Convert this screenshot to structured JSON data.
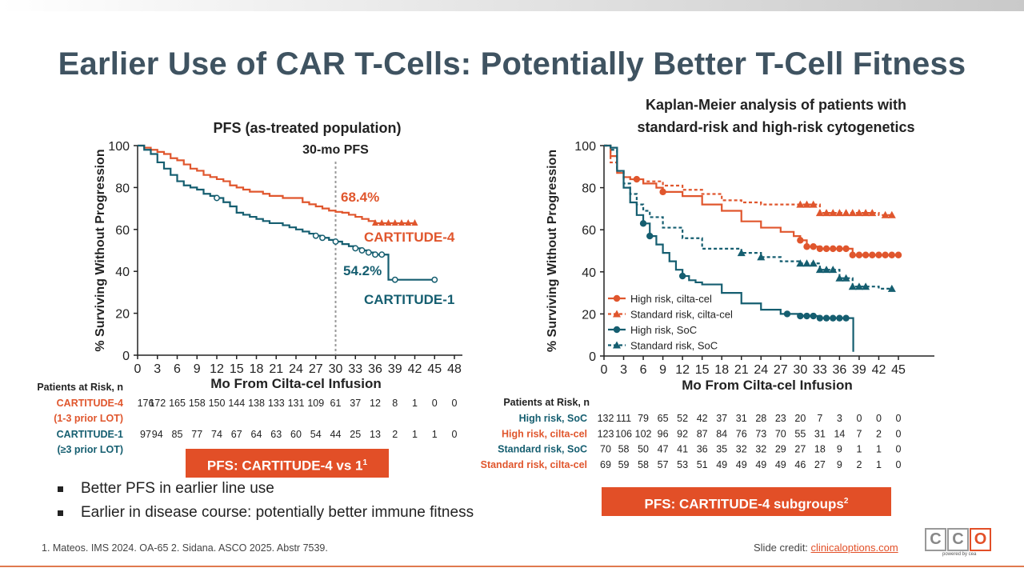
{
  "slide": {
    "title": "Earlier Use of CAR T-Cells: Potentially Better T-Cell Fitness",
    "bullets": [
      "Better PFS in earlier line use",
      "Earlier in disease course: potentially better immune fitness"
    ],
    "footnote": "1. Mateos. IMS 2024. OA-65 2. Sidana. ASCO 2025. Abstr 7539.",
    "credit_label": "Slide credit: ",
    "credit_link": "clinicaloptions.com",
    "logo_letters": [
      "C",
      "C",
      "O"
    ],
    "logo_tagline": "powered by cea",
    "callout_left": "PFS: CARTITUDE-4 vs 1",
    "callout_left_sup": "1",
    "callout_right": "PFS: CARTITUDE-4 subgroups",
    "callout_right_sup": "2"
  },
  "colors": {
    "orange": "#e0562d",
    "teal": "#155e70",
    "title": "#3f5361",
    "callout": "#e24f27"
  },
  "chart_data": [
    {
      "type": "line",
      "title": "PFS (as-treated population)",
      "xlabel": "Mo From Cilta-cel Infusion",
      "ylabel": "% Surviving Without Progression",
      "xlim": [
        0,
        48
      ],
      "ylim": [
        0,
        100
      ],
      "xticks": [
        0,
        3,
        6,
        9,
        12,
        15,
        18,
        21,
        24,
        27,
        30,
        33,
        36,
        39,
        42,
        45,
        48
      ],
      "yticks": [
        0,
        20,
        40,
        60,
        80,
        100
      ],
      "reference_line": {
        "x": 30,
        "label": "30-mo PFS"
      },
      "series": [
        {
          "name": "CARTITUDE-4",
          "color": "orange",
          "label": "CARTITUDE-4",
          "annotation": "68.4%",
          "x": [
            0,
            1,
            2,
            3,
            4,
            5,
            6,
            7,
            8,
            9,
            10,
            11,
            12,
            13,
            14,
            15,
            16,
            17,
            18,
            19,
            20,
            21,
            22,
            23,
            24,
            25,
            26,
            27,
            28,
            29,
            30,
            31,
            32,
            33,
            34,
            35,
            36,
            37,
            38,
            39,
            40,
            41,
            42
          ],
          "y": [
            100,
            99,
            98,
            97,
            96,
            94,
            93,
            91,
            89,
            88,
            86,
            85,
            84,
            83,
            81,
            80,
            79,
            78,
            78,
            77,
            76,
            76,
            75,
            75,
            75,
            73,
            72,
            71,
            70,
            69,
            68.4,
            68,
            67,
            66,
            65,
            64,
            63,
            63,
            63,
            63,
            63,
            63,
            63
          ]
        },
        {
          "name": "CARTITUDE-1",
          "color": "teal",
          "label": "CARTITUDE-1",
          "annotation": "54.2%",
          "x": [
            0,
            1,
            2,
            3,
            4,
            5,
            6,
            7,
            8,
            9,
            10,
            11,
            12,
            13,
            14,
            15,
            16,
            17,
            18,
            19,
            20,
            21,
            22,
            23,
            24,
            25,
            26,
            27,
            28,
            29,
            30,
            31,
            32,
            33,
            34,
            35,
            36,
            37,
            38,
            39,
            40,
            41,
            42,
            43,
            44,
            45
          ],
          "y": [
            100,
            98,
            96,
            92,
            89,
            86,
            83,
            81,
            80,
            79,
            77,
            76,
            75,
            73,
            71,
            68,
            67,
            66,
            65,
            64,
            63,
            63,
            62,
            61,
            60,
            59,
            58,
            57,
            56,
            55,
            54.2,
            53,
            52,
            51,
            50,
            49,
            48,
            48,
            36,
            36,
            36,
            36,
            36,
            36,
            36,
            36
          ]
        }
      ],
      "risk_table": {
        "header": "Patients at Risk, n",
        "rows": [
          {
            "label": "CARTITUDE-4",
            "sublabel": "(1-3 prior LOT)",
            "color": "orange",
            "values": [
              176,
              172,
              165,
              158,
              150,
              144,
              138,
              133,
              131,
              109,
              61,
              37,
              12,
              8,
              1,
              0,
              0
            ]
          },
          {
            "label": "CARTITUDE-1",
            "sublabel": "(≥3 prior LOT)",
            "color": "teal",
            "values": [
              97,
              94,
              85,
              77,
              74,
              67,
              64,
              63,
              60,
              54,
              44,
              25,
              13,
              2,
              1,
              1,
              0
            ]
          }
        ]
      }
    },
    {
      "type": "line",
      "title": "Kaplan-Meier analysis of patients with standard-risk and high-risk cytogenetics",
      "title_lines": [
        "Kaplan-Meier analysis of patients with",
        "standard-risk and high-risk cytogenetics"
      ],
      "xlabel": "Mo From Cilta-cel Infusion",
      "ylabel": "% Surviving Without Progression",
      "xlim": [
        0,
        45
      ],
      "ylim": [
        0,
        100
      ],
      "xticks": [
        0,
        3,
        6,
        9,
        12,
        15,
        18,
        21,
        24,
        27,
        30,
        33,
        36,
        39,
        42,
        45
      ],
      "yticks": [
        0,
        20,
        40,
        60,
        80,
        100
      ],
      "legend_position": "bottom-left",
      "series": [
        {
          "name": "High risk, cilta-cel",
          "color": "orange",
          "dash": false,
          "marker": "circle",
          "x": [
            0,
            1,
            2,
            3,
            4,
            6,
            8,
            9,
            12,
            15,
            18,
            21,
            24,
            27,
            29,
            30,
            31,
            33,
            36,
            38,
            40,
            42,
            45
          ],
          "y": [
            100,
            95,
            87,
            85,
            84,
            82,
            80,
            78,
            76,
            72,
            69,
            64,
            61,
            59,
            57,
            55,
            52,
            51,
            51,
            48,
            48,
            48,
            48
          ]
        },
        {
          "name": "Standard risk, cilta-cel",
          "color": "orange",
          "dash": true,
          "marker": "triangle",
          "x": [
            0,
            1,
            2,
            3,
            4,
            6,
            9,
            12,
            15,
            18,
            21,
            24,
            27,
            29,
            30,
            32,
            33,
            36,
            39,
            42,
            44
          ],
          "y": [
            100,
            92,
            88,
            85,
            84,
            83,
            81,
            79,
            77,
            74,
            73,
            72,
            72,
            72,
            72,
            72,
            68,
            68,
            68,
            67,
            67
          ]
        },
        {
          "name": "High risk, SoC",
          "color": "teal",
          "dash": false,
          "marker": "circle",
          "x": [
            0,
            1,
            2,
            3,
            4,
            5,
            6,
            7,
            8,
            9,
            10,
            11,
            12,
            13,
            14,
            15,
            18,
            21,
            24,
            27,
            30,
            33,
            36,
            37,
            38,
            38.1
          ],
          "y": [
            100,
            99,
            88,
            80,
            73,
            67,
            63,
            57,
            53,
            49,
            45,
            41,
            38,
            36,
            35,
            34,
            30,
            25,
            22,
            20,
            19,
            18,
            18,
            18,
            18,
            2
          ]
        },
        {
          "name": "Standard risk, SoC",
          "color": "teal",
          "dash": true,
          "marker": "triangle",
          "x": [
            0,
            1,
            2,
            3,
            4,
            5,
            6,
            7,
            9,
            12,
            15,
            18,
            21,
            24,
            27,
            30,
            33,
            36,
            38,
            40,
            42,
            44
          ],
          "y": [
            100,
            98,
            88,
            82,
            77,
            72,
            69,
            66,
            61,
            56,
            51,
            51,
            49,
            47,
            45,
            44,
            41,
            37,
            33,
            33,
            32,
            32
          ]
        }
      ],
      "risk_table": {
        "header": "Patients at Risk, n",
        "rows": [
          {
            "label": "High risk, SoC",
            "color": "teal",
            "values": [
              132,
              111,
              79,
              65,
              52,
              42,
              37,
              31,
              28,
              23,
              20,
              7,
              3,
              0,
              0,
              0
            ]
          },
          {
            "label": "High risk, cilta-cel",
            "color": "orange",
            "values": [
              123,
              106,
              102,
              96,
              92,
              87,
              84,
              76,
              73,
              70,
              55,
              31,
              14,
              7,
              2,
              0
            ]
          },
          {
            "label": "Standard risk, SoC",
            "color": "teal",
            "values": [
              70,
              58,
              50,
              47,
              41,
              36,
              35,
              32,
              32,
              29,
              27,
              18,
              9,
              1,
              1,
              0
            ]
          },
          {
            "label": "Standard risk, cilta-cel",
            "color": "orange",
            "values": [
              69,
              59,
              58,
              57,
              53,
              51,
              49,
              49,
              49,
              49,
              46,
              27,
              9,
              2,
              1,
              0
            ]
          }
        ]
      }
    }
  ]
}
